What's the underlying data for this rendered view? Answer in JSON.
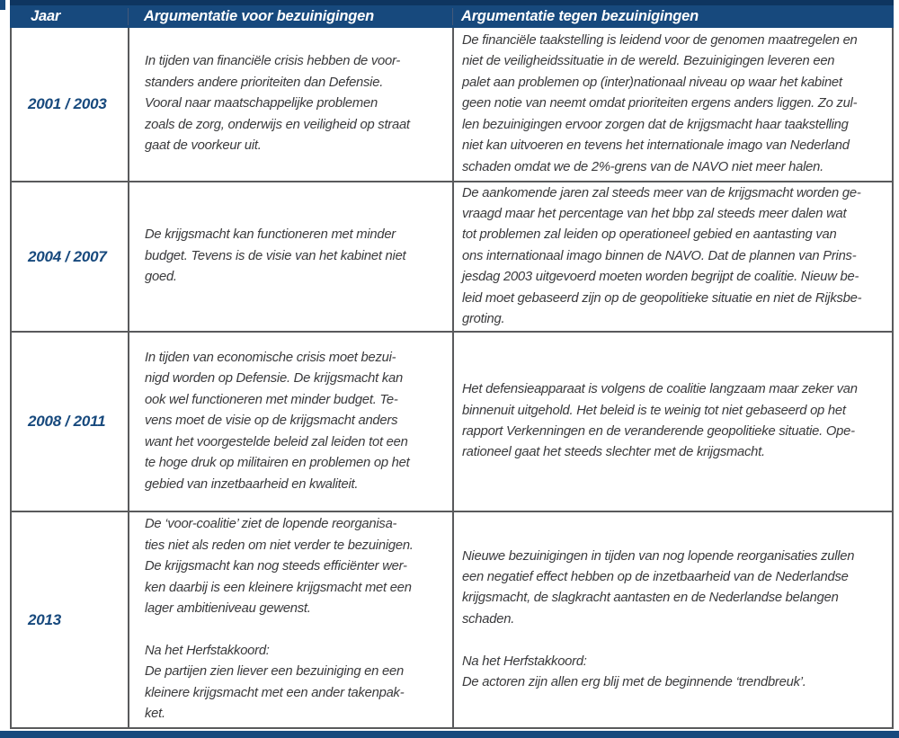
{
  "colors": {
    "header_background": "#17497D",
    "header_text": "#FFFFFF",
    "top_strip": "#0E3560",
    "bottom_bar": "#17497D",
    "year_text": "#17497D",
    "body_text": "#3A3A3C",
    "grid_border": "#595A5C",
    "page_background": "#FFFFFF"
  },
  "table": {
    "columns": [
      {
        "key": "jaar",
        "label": "Jaar"
      },
      {
        "key": "voor",
        "label": "Argumentatie voor bezuinigingen"
      },
      {
        "key": "tegen",
        "label": "Argumentatie tegen bezuinigingen"
      }
    ],
    "rows": [
      {
        "year": "2001 / 2003",
        "voor": "In tijden van financiële crisis hebben de voor-\nstanders andere prioriteiten dan Defensie.\nVooral naar maatschappelijke problemen\nzoals de zorg, onderwijs en veiligheid op straat\ngaat de voorkeur uit.",
        "tegen": "De financiële taakstelling is leidend voor de genomen maatregelen en\nniet de veiligheidssituatie in de wereld. Bezuinigingen leveren een\npalet aan problemen op (inter)nationaal niveau op waar het kabinet\ngeen notie van neemt omdat prioriteiten ergens anders liggen. Zo zul-\nlen bezuinigingen ervoor zorgen dat de krijgsmacht haar taakstelling\nniet kan uitvoeren en tevens het internationale imago van Nederland\nschaden omdat we de 2%-grens van de NAVO niet meer halen."
      },
      {
        "year": "2004 / 2007",
        "voor": "De krijgsmacht kan functioneren met minder\nbudget. Tevens is de visie van het kabinet niet\ngoed.",
        "tegen": "De aankomende jaren zal steeds meer van de krijgsmacht worden ge-\nvraagd maar het percentage van het bbp zal steeds meer dalen wat\ntot problemen zal leiden op operationeel gebied en aantasting van\nons internationaal imago binnen de NAVO. Dat de plannen van Prins-\njesdag 2003 uitgevoerd moeten worden begrijpt de coalitie. Nieuw be-\nleid moet gebaseerd zijn op de geopolitieke situatie en niet de Rijksbe-\ngroting."
      },
      {
        "year": "2008 / 2011",
        "voor": "In tijden van economische crisis moet bezui-\nnigd worden op Defensie. De krijgsmacht kan\nook wel functioneren met minder budget. Te-\nvens moet de visie op de krijgsmacht anders\nwant het voorgestelde beleid zal leiden tot een\nte hoge druk op militairen en problemen op het\ngebied van inzetbaarheid en kwaliteit.",
        "tegen": "Het defensieapparaat is volgens de coalitie langzaam maar zeker van\nbinnenuit uitgehold. Het beleid is te weinig tot niet gebaseerd op het\nrapport Verkenningen en de veranderende geopolitieke situatie. Ope-\nrationeel gaat het steeds slechter met de krijgsmacht."
      },
      {
        "year": "2013",
        "voor": "De ‘voor-coalitie’ ziet de lopende reorganisa-\nties niet als reden om niet verder te bezuinigen.\nDe krijgsmacht kan nog steeds efficiënter wer-\nken daarbij is een kleinere krijgsmacht met een\nlager ambitieniveau gewenst.\n\nNa het Herfstakkoord:\nDe partijen zien liever een bezuiniging en een\nkleinere krijgsmacht met een ander takenpak-\nket.",
        "tegen": "Nieuwe bezuinigingen in tijden van nog lopende reorganisaties zullen\neen negatief effect hebben op de inzetbaarheid van de Nederlandse\nkrijgsmacht, de slagkracht aantasten en de Nederlandse belangen\nschaden.\n\nNa het Herfstakkoord:\nDe actoren zijn allen erg blij met de beginnende ‘trendbreuk’."
      }
    ]
  }
}
